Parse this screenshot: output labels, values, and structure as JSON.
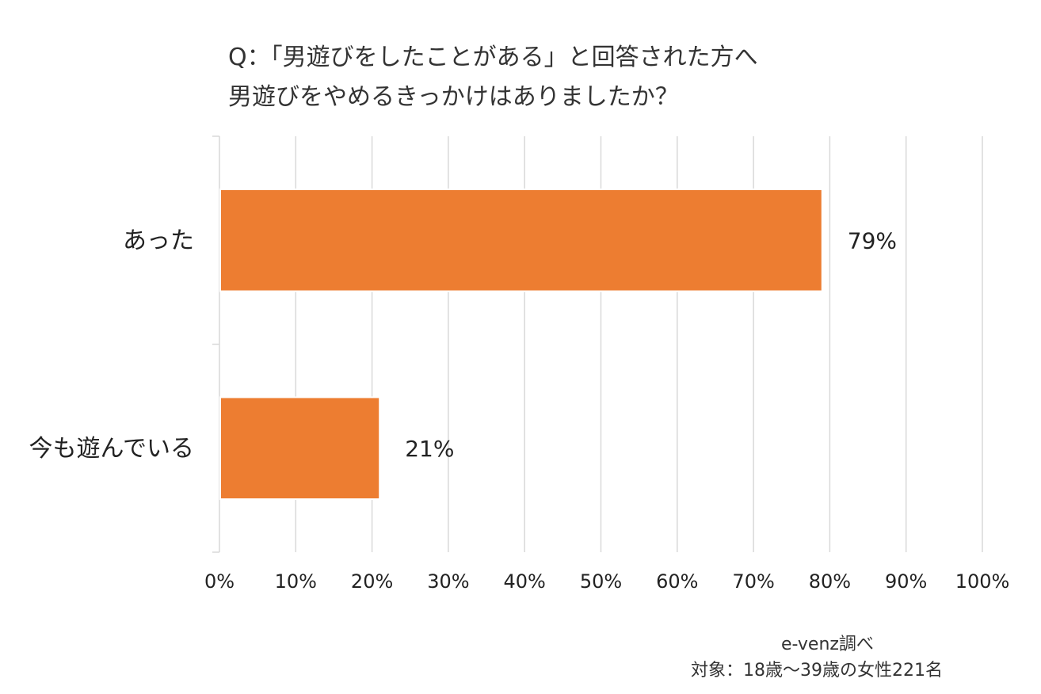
{
  "title_lines": [
    "Q：「男遊びをしたことがある」と回答された方へ",
    "男遊びをやめるきっかけはありましたか？"
  ],
  "source_note": "e-venz調べ",
  "target_note": "対象：18歳〜39歳の女性221名",
  "colors": {
    "bar": "#ED7D31",
    "grid": "#D9D9D9",
    "text": "#222222"
  },
  "chart_data": {
    "type": "bar",
    "orientation": "horizontal",
    "categories": [
      "あった",
      "今も遊んでいる"
    ],
    "values": [
      79,
      21
    ],
    "value_labels": [
      "79%",
      "21%"
    ],
    "xlim": [
      0,
      100
    ],
    "xticks": [
      "0%",
      "10%",
      "20%",
      "30%",
      "40%",
      "50%",
      "60%",
      "70%",
      "80%",
      "90%",
      "100%"
    ],
    "grid": true
  }
}
